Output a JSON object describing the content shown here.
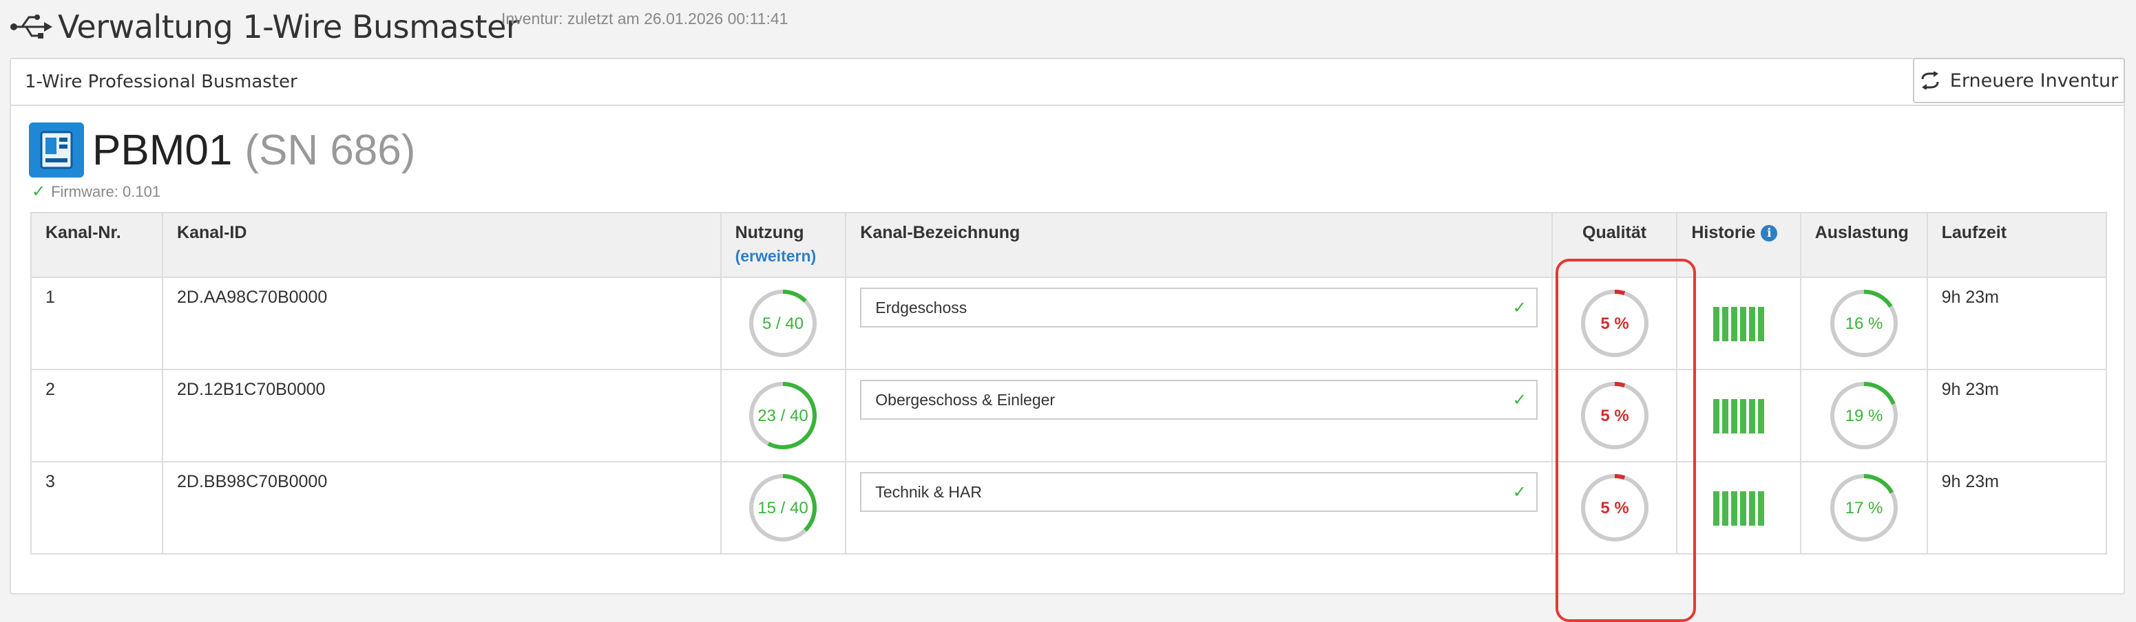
{
  "header": {
    "title": "Verwaltung 1-Wire Busmaster",
    "inventory_note": "Inventur: zuletzt am 26.01.2026 00:11:41",
    "icon": "usb-icon"
  },
  "panel": {
    "title": "1-Wire Professional Busmaster",
    "refresh_label": "Erneuere Inventur"
  },
  "device": {
    "name": "PBM01",
    "serial": "(SN 686)",
    "firmware": "Firmware: 0.101"
  },
  "table": {
    "headers": {
      "channel_no": "Kanal-Nr.",
      "channel_id": "Kanal-ID",
      "usage": "Nutzung",
      "usage_expand": "(erweitern)",
      "label": "Kanal-Bezeichnung",
      "quality": "Qualität",
      "history": "Historie",
      "load": "Auslastung",
      "runtime": "Laufzeit"
    },
    "rows": [
      {
        "no": "1",
        "id": "2D.AA98C70B0000",
        "usage": "5 / 40",
        "usage_fraction": 0.125,
        "label": "Erdgeschoss",
        "quality": "5 %",
        "quality_fraction": 0.05,
        "load": "16 %",
        "load_fraction": 0.16,
        "runtime": "9h 23m"
      },
      {
        "no": "2",
        "id": "2D.12B1C70B0000",
        "usage": "23 / 40",
        "usage_fraction": 0.575,
        "label": "Obergeschoss & Einleger",
        "quality": "5 %",
        "quality_fraction": 0.05,
        "load": "19 %",
        "load_fraction": 0.19,
        "runtime": "9h 23m"
      },
      {
        "no": "3",
        "id": "2D.BB98C70B0000",
        "usage": "15 / 40",
        "usage_fraction": 0.375,
        "label": "Technik & HAR",
        "quality": "5 %",
        "quality_fraction": 0.05,
        "load": "17 %",
        "load_fraction": 0.17,
        "runtime": "9h 23m"
      }
    ]
  },
  "colors": {
    "green": "#3ab33a",
    "red": "#d32f2f",
    "ring_track": "#cccccc",
    "accent_blue": "#2d7fc4",
    "highlight": "#e53935"
  }
}
